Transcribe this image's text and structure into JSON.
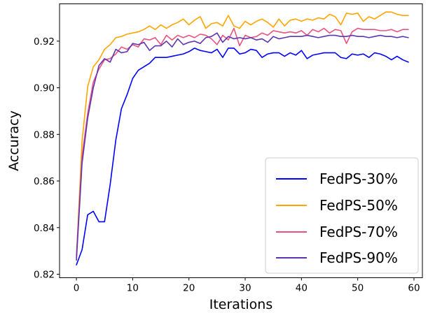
{
  "chart_data": {
    "type": "line",
    "title": "",
    "xlabel": "Iterations",
    "ylabel": "Accuracy",
    "xlim": [
      -3,
      61.5
    ],
    "ylim": [
      0.8185,
      0.936
    ],
    "xticks": [
      0,
      10,
      20,
      30,
      40,
      50,
      60
    ],
    "yticks": [
      0.82,
      0.84,
      0.86,
      0.88,
      0.9,
      0.92
    ],
    "ytick_labels": [
      "0.82",
      "0.84",
      "0.86",
      "0.88",
      "0.90",
      "0.92"
    ],
    "grid": false,
    "legend_position": "lower-right",
    "x": [
      0,
      1,
      2,
      3,
      4,
      5,
      6,
      7,
      8,
      9,
      10,
      11,
      12,
      13,
      14,
      15,
      16,
      17,
      18,
      19,
      20,
      21,
      22,
      23,
      24,
      25,
      26,
      27,
      28,
      29,
      30,
      31,
      32,
      33,
      34,
      35,
      36,
      37,
      38,
      39,
      40,
      41,
      42,
      43,
      44,
      45,
      46,
      47,
      48,
      49,
      50,
      51,
      52,
      53,
      54,
      55,
      56,
      57,
      58,
      59
    ],
    "series": [
      {
        "name": "FedPS-30%",
        "color": "#0000ff",
        "values": [
          0.824,
          0.8305,
          0.8455,
          0.847,
          0.8425,
          0.8425,
          0.8585,
          0.8775,
          0.891,
          0.897,
          0.904,
          0.9075,
          0.909,
          0.9105,
          0.913,
          0.913,
          0.913,
          0.9135,
          0.914,
          0.9145,
          0.9155,
          0.917,
          0.916,
          0.9155,
          0.915,
          0.9165,
          0.913,
          0.917,
          0.917,
          0.9145,
          0.915,
          0.9165,
          0.916,
          0.913,
          0.9145,
          0.915,
          0.915,
          0.9135,
          0.915,
          0.914,
          0.916,
          0.9125,
          0.914,
          0.9145,
          0.915,
          0.915,
          0.915,
          0.913,
          0.9125,
          0.9145,
          0.914,
          0.9145,
          0.913,
          0.915,
          0.9145,
          0.9135,
          0.912,
          0.9135,
          0.912,
          0.911
        ]
      },
      {
        "name": "FedPS-50%",
        "color": "#ffa500",
        "values": [
          0.827,
          0.877,
          0.9005,
          0.909,
          0.912,
          0.9165,
          0.9185,
          0.9215,
          0.922,
          0.923,
          0.9235,
          0.924,
          0.925,
          0.9265,
          0.925,
          0.927,
          0.9255,
          0.927,
          0.928,
          0.9295,
          0.927,
          0.929,
          0.9305,
          0.9255,
          0.9275,
          0.928,
          0.9265,
          0.931,
          0.9265,
          0.9255,
          0.9285,
          0.927,
          0.9285,
          0.9295,
          0.928,
          0.926,
          0.9295,
          0.9265,
          0.929,
          0.9295,
          0.9285,
          0.9295,
          0.929,
          0.93,
          0.9295,
          0.9315,
          0.9305,
          0.927,
          0.932,
          0.9315,
          0.932,
          0.9285,
          0.9305,
          0.9295,
          0.931,
          0.9325,
          0.9325,
          0.9315,
          0.931,
          0.931
        ]
      },
      {
        "name": "FedPS-70%",
        "color": "#e75480",
        "values": [
          0.828,
          0.8705,
          0.889,
          0.9025,
          0.908,
          0.912,
          0.9125,
          0.9145,
          0.9175,
          0.9165,
          0.9185,
          0.9175,
          0.921,
          0.9205,
          0.9215,
          0.9185,
          0.9225,
          0.9205,
          0.9225,
          0.9215,
          0.9225,
          0.9215,
          0.923,
          0.9225,
          0.921,
          0.9185,
          0.9225,
          0.9205,
          0.9255,
          0.918,
          0.9225,
          0.9215,
          0.922,
          0.9235,
          0.9225,
          0.9245,
          0.924,
          0.9235,
          0.924,
          0.9235,
          0.9245,
          0.9225,
          0.925,
          0.924,
          0.9255,
          0.9235,
          0.925,
          0.9245,
          0.919,
          0.924,
          0.9255,
          0.925,
          0.925,
          0.925,
          0.9245,
          0.9245,
          0.925,
          0.924,
          0.925,
          0.925
        ]
      },
      {
        "name": "FedPS-90%",
        "color": "#5e35b1",
        "values": [
          0.826,
          0.8675,
          0.887,
          0.9,
          0.9095,
          0.9125,
          0.911,
          0.9165,
          0.915,
          0.9155,
          0.919,
          0.9185,
          0.9195,
          0.916,
          0.918,
          0.918,
          0.92,
          0.9175,
          0.921,
          0.9185,
          0.9195,
          0.92,
          0.919,
          0.9215,
          0.922,
          0.9235,
          0.9195,
          0.922,
          0.921,
          0.9215,
          0.921,
          0.9215,
          0.9205,
          0.921,
          0.9195,
          0.922,
          0.921,
          0.9215,
          0.922,
          0.922,
          0.922,
          0.9225,
          0.922,
          0.9215,
          0.922,
          0.9225,
          0.9225,
          0.922,
          0.922,
          0.9225,
          0.922,
          0.922,
          0.9215,
          0.922,
          0.9225,
          0.922,
          0.922,
          0.9215,
          0.922,
          0.9215
        ]
      }
    ]
  }
}
